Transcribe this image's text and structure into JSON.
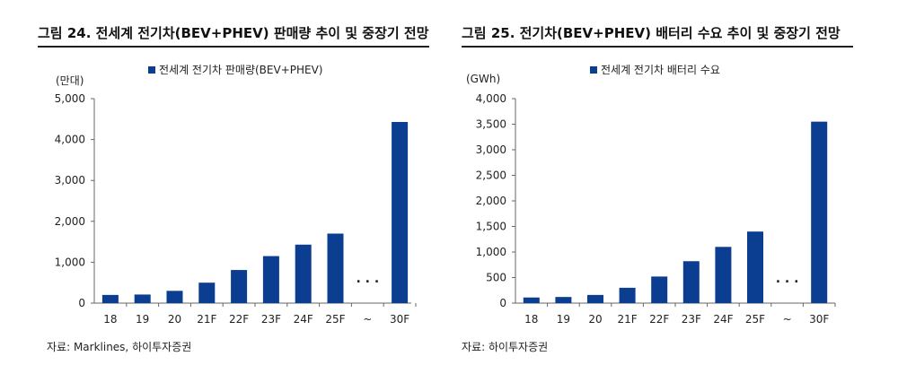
{
  "figures": [
    {
      "title": "그림 24. 전세계 전기차(BEV+PHEV) 판매량 추이 및 중장기 전망",
      "unit": "(만대)",
      "legend": "전세계 전기차 판매량(BEV+PHEV)",
      "source": "자료: Marklines, 하이투자증권"
    },
    {
      "title": "그림 25. 전기차(BEV+PHEV) 배터리 수요 추이 및 중장기 전망",
      "unit": "(GWh)",
      "legend": "전세계 전기차 배터리 수요",
      "source": "자료: 하이투자증권"
    }
  ],
  "chart_data": [
    {
      "type": "bar",
      "title": "그림 24. 전세계 전기차(BEV+PHEV) 판매량 추이 및 중장기 전망",
      "ylabel": "(만대)",
      "categories": [
        "18",
        "19",
        "20",
        "21F",
        "22F",
        "23F",
        "24F",
        "25F",
        "~",
        "30F"
      ],
      "series": [
        {
          "name": "전세계 전기차 판매량(BEV+PHEV)",
          "values": [
            200,
            210,
            300,
            500,
            810,
            1150,
            1430,
            1700,
            null,
            4430
          ]
        }
      ],
      "yticks": [
        "0",
        "1,000",
        "2,000",
        "3,000",
        "4,000",
        "5,000"
      ],
      "ylim": [
        0,
        5000
      ],
      "gap_marker": "· · ·",
      "bar_color": "#0b3d91",
      "legend_position": "top"
    },
    {
      "type": "bar",
      "title": "그림 25. 전기차(BEV+PHEV) 배터리 수요 추이 및 중장기 전망",
      "ylabel": "(GWh)",
      "categories": [
        "18",
        "19",
        "20",
        "21F",
        "22F",
        "23F",
        "24F",
        "25F",
        "~",
        "30F"
      ],
      "series": [
        {
          "name": "전세계 전기차 배터리 수요",
          "values": [
            110,
            120,
            160,
            300,
            520,
            820,
            1100,
            1400,
            null,
            3550
          ]
        }
      ],
      "yticks": [
        "0",
        "500",
        "1,000",
        "1,500",
        "2,000",
        "2,500",
        "3,000",
        "3,500",
        "4,000"
      ],
      "ylim": [
        0,
        4000
      ],
      "gap_marker": "· · ·",
      "bar_color": "#0b3d91",
      "legend_position": "top"
    }
  ]
}
